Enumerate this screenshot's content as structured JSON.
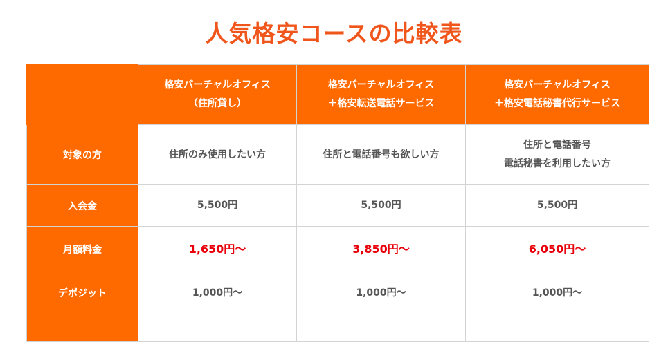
{
  "title": "人気格安コースの比較表",
  "columns": [
    {
      "line1": "格安バーチャルオフィス",
      "line2": "（住所貸し）"
    },
    {
      "line1": "格安バーチャルオフィス",
      "line2": "＋格安転送電話サービス"
    },
    {
      "line1": "格安バーチャルオフィス",
      "line2": "＋格安電話秘書代行サービス"
    }
  ],
  "rows": {
    "target": {
      "label": "対象の方",
      "values": [
        {
          "line1": "住所のみ使用したい方",
          "line2": ""
        },
        {
          "line1": "住所と電話番号も欲しい方",
          "line2": ""
        },
        {
          "line1": "住所と電話番号",
          "line2": "電話秘書を利用したい方"
        }
      ]
    },
    "enrollment_fee": {
      "label": "入会金",
      "values": [
        "5,500円",
        "5,500円",
        "5,500円"
      ]
    },
    "monthly_fee": {
      "label": "月額料金",
      "values": [
        "1,650円〜",
        "3,850円〜",
        "6,050円〜"
      ]
    },
    "deposit": {
      "label": "デポジット",
      "values": [
        "1,000円〜",
        "1,000円〜",
        "1,000円〜"
      ]
    }
  },
  "colors": {
    "accent": "#ff6a00",
    "title": "#f0561b",
    "price": "#e8000b",
    "text": "#555555",
    "border": "#d3d3d3"
  }
}
